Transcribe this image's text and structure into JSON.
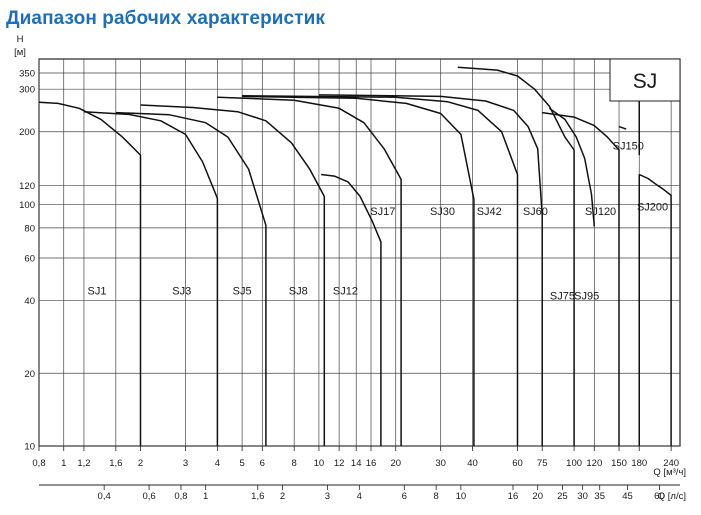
{
  "page": {
    "title": "Диапазон рабочих характеристик"
  },
  "chart_data": {
    "type": "line",
    "title": "Диапазон рабочих характеристик",
    "badge": "SJ",
    "y_unit_top": "H",
    "y_unit_bottom": "[м]",
    "x_unit_label": "Q [м³/ч]",
    "x2_unit_label": "Q [л/с]",
    "y_scale": "log",
    "x_scale": "log",
    "ylim": [
      10,
      400
    ],
    "xlim": [
      0.8,
      260
    ],
    "y_ticks": [
      10,
      20,
      40,
      60,
      80,
      100,
      120,
      200,
      300,
      350
    ],
    "y_tick_labels": [
      "10",
      "20",
      "40",
      "60",
      "80",
      "100",
      "120",
      "200",
      "300",
      "350"
    ],
    "x_ticks": [
      0.8,
      1,
      1.2,
      1.6,
      2,
      3,
      4,
      5,
      6,
      8,
      10,
      12,
      14,
      16,
      20,
      30,
      40,
      60,
      75,
      100,
      120,
      150,
      180,
      240
    ],
    "x_tick_labels": [
      "0,8",
      "1",
      "1,2",
      "1,6",
      "2",
      "3",
      "4",
      "5",
      "6",
      "8",
      "10",
      "12",
      "14",
      "16",
      "20",
      "30",
      "40",
      "60",
      "75",
      "100",
      "120",
      "150",
      "180",
      "240"
    ],
    "x2_ticks": [
      1.44,
      2.16,
      2.88,
      3.6,
      5.76,
      7.2,
      10.8,
      14.4,
      21.6,
      28.8,
      36,
      57.6,
      72,
      90,
      108,
      126,
      162,
      216
    ],
    "x2_tick_labels": [
      "0,4",
      "0,6",
      "0,8",
      "1",
      "1,6",
      "2",
      "3",
      "4",
      "6",
      "8",
      "10",
      "16",
      "20",
      "25",
      "30",
      "35",
      "45",
      "60"
    ],
    "grid": true,
    "series": [
      {
        "name": "SJ1",
        "label_at": [
          1.35,
          44
        ],
        "points": [
          [
            0.8,
            265
          ],
          [
            0.95,
            262
          ],
          [
            1.15,
            250
          ],
          [
            1.4,
            225
          ],
          [
            1.7,
            190
          ],
          [
            2.0,
            160
          ],
          [
            2.0,
            10
          ]
        ]
      },
      {
        "name": "SJ3",
        "label_at": [
          2.9,
          44
        ],
        "points": [
          [
            1.2,
            242
          ],
          [
            1.8,
            236
          ],
          [
            2.4,
            222
          ],
          [
            3.0,
            195
          ],
          [
            3.5,
            150
          ],
          [
            4.0,
            106
          ],
          [
            4.0,
            10
          ]
        ]
      },
      {
        "name": "SJ5",
        "label_at": [
          5.0,
          44
        ],
        "points": [
          [
            1.6,
            240
          ],
          [
            2.6,
            235
          ],
          [
            3.6,
            218
          ],
          [
            4.4,
            190
          ],
          [
            5.3,
            140
          ],
          [
            6.2,
            82
          ],
          [
            6.2,
            10
          ]
        ]
      },
      {
        "name": "SJ8",
        "label_at": [
          8.3,
          44
        ],
        "points": [
          [
            2.0,
            258
          ],
          [
            3.2,
            252
          ],
          [
            4.8,
            242
          ],
          [
            6.2,
            222
          ],
          [
            7.8,
            180
          ],
          [
            9.2,
            140
          ],
          [
            10.5,
            108
          ],
          [
            10.5,
            10
          ]
        ]
      },
      {
        "name": "SJ12",
        "label_at": [
          12.7,
          44
        ],
        "points": [
          [
            10.2,
            133
          ],
          [
            11.5,
            131
          ],
          [
            13.0,
            124
          ],
          [
            14.5,
            108
          ],
          [
            16.2,
            85
          ],
          [
            17.5,
            70
          ],
          [
            17.5,
            10
          ]
        ]
      },
      {
        "name": "SJ17",
        "label_at": [
          17.8,
          94
        ],
        "points": [
          [
            4.0,
            278
          ],
          [
            8.0,
            270
          ],
          [
            12.0,
            250
          ],
          [
            15.0,
            218
          ],
          [
            18.0,
            170
          ],
          [
            21.0,
            127
          ],
          [
            21.0,
            10
          ]
        ]
      },
      {
        "name": "SJ30",
        "label_at": [
          30.5,
          94
        ],
        "points": [
          [
            5.0,
            280
          ],
          [
            14.0,
            275
          ],
          [
            22.0,
            262
          ],
          [
            30.0,
            238
          ],
          [
            36.0,
            195
          ],
          [
            40.5,
            105
          ],
          [
            40.5,
            10
          ]
        ]
      },
      {
        "name": "SJ42",
        "label_at": [
          46.5,
          94
        ],
        "points": [
          [
            5.0,
            282
          ],
          [
            20.0,
            278
          ],
          [
            32.0,
            266
          ],
          [
            42.0,
            245
          ],
          [
            52.0,
            200
          ],
          [
            60.0,
            133
          ],
          [
            60.0,
            10
          ]
        ]
      },
      {
        "name": "SJ60",
        "label_at": [
          70.5,
          94
        ],
        "points": [
          [
            10.0,
            284
          ],
          [
            30.0,
            280
          ],
          [
            45.0,
            268
          ],
          [
            58.0,
            245
          ],
          [
            66.0,
            210
          ],
          [
            72.0,
            170
          ],
          [
            75.0,
            90
          ],
          [
            75.0,
            10
          ]
        ]
      },
      {
        "name": "SJ75",
        "label_at": [
          90.0,
          42
        ],
        "points": [
          [
            35.0,
            370
          ],
          [
            50.0,
            360
          ],
          [
            60.0,
            340
          ],
          [
            70.0,
            300
          ],
          [
            80.0,
            255
          ],
          [
            92.0,
            190
          ],
          [
            100.0,
            168
          ],
          [
            100.0,
            10
          ]
        ]
      },
      {
        "name": "SJ95",
        "label_at": [
          112.0,
          42
        ],
        "points": [
          [
            80.0,
            250
          ],
          [
            92.0,
            225
          ],
          [
            102.0,
            190
          ],
          [
            110.0,
            155
          ],
          [
            117.0,
            110
          ],
          [
            120.0,
            81
          ]
        ]
      },
      {
        "name": "SJ120",
        "label_at": [
          127.0,
          94
        ],
        "points": [
          [
            75.0,
            240
          ],
          [
            100.0,
            230
          ],
          [
            120.0,
            212
          ],
          [
            135.0,
            190
          ],
          [
            150.0,
            168
          ],
          [
            150.0,
            10
          ]
        ]
      },
      {
        "name": "SJ150",
        "label_at": [
          163.0,
          175
        ],
        "points": [
          [
            150.0,
            210
          ],
          [
            160.0,
            205
          ]
        ]
      },
      {
        "name": "SJ200",
        "label_at": [
          203.0,
          98
        ],
        "points": [
          [
            180.0,
            133
          ],
          [
            195.0,
            128
          ],
          [
            212.0,
            120
          ],
          [
            225.0,
            115
          ],
          [
            240.0,
            109
          ],
          [
            240.0,
            10
          ]
        ]
      }
    ],
    "frame_lines": [
      {
        "axis": "x",
        "at": 180.0,
        "from": 10,
        "to": 133
      },
      {
        "axis": "x",
        "at": 180.0,
        "from": 160,
        "to": 400
      }
    ]
  }
}
